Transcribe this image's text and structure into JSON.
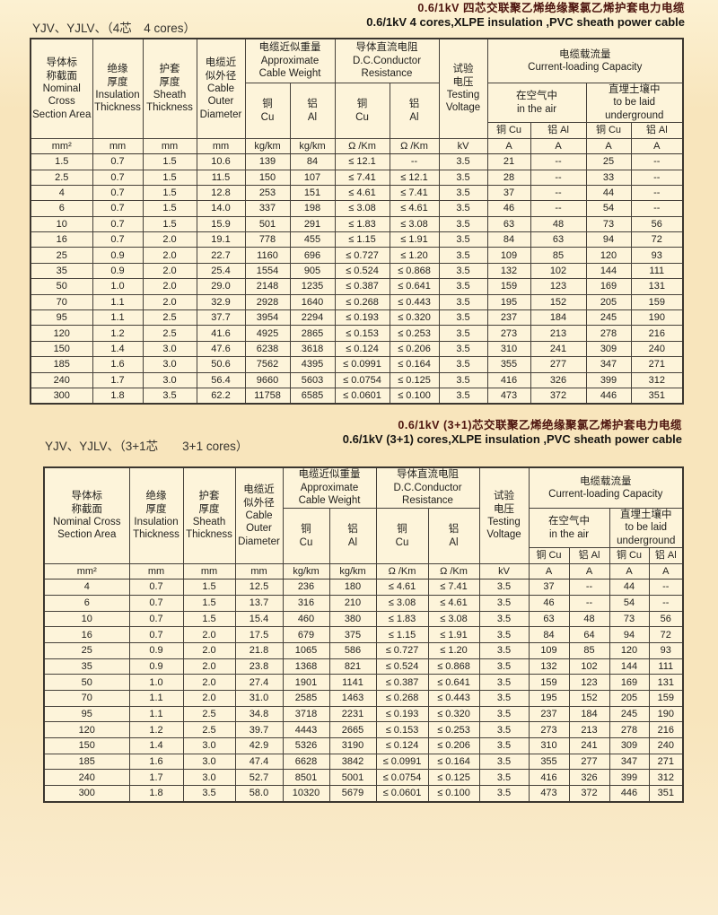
{
  "colors": {
    "page_bg": "#f8e5bc",
    "cell_bg": "#fdf4da",
    "title_zh": "#4d140e",
    "title_en": "#161512"
  },
  "tables": {
    "t1": {
      "title_zh": "0.6/1kV 四芯交联聚乙烯绝缘聚氯乙烯护套电力电缆",
      "title_en": "0.6/1kV 4 cores,XLPE insulation ,PVC sheath power cable",
      "model": "YJV、YJLV、（4芯　4 cores）",
      "header": {
        "nominal": "导体标\n称截面\nNominal\nCross\nSection Area",
        "insulation": "绝缘\n厚度\nInsulation\nThickness",
        "sheath": "护套\n厚度\nSheath\nThickness",
        "diameter": "电缆近\n似外径\nCable\nOuter\nDiameter",
        "weight": "电缆近似重量\nApproximate\nCable Weight",
        "resistance": "导体直流电阻\nD.C.Conductor\nResistance",
        "voltage": "试验\n电压\nTesting\nVoltage",
        "capacity": "电缆载流量\nCurrent-loading Capacity",
        "air": "在空气中\nin the air",
        "underground": "直埋土壤中\nto be laid\nunderground",
        "cu_stacked": "铜\nCu",
        "al_stacked": "铝\nAl",
        "cu_inline": "铜 Cu",
        "al_inline": "铝 Al"
      },
      "units": [
        "mm²",
        "mm",
        "mm",
        "mm",
        "kg/km",
        "kg/km",
        "Ω /Km",
        "Ω /Km",
        "kV",
        "A",
        "A",
        "A",
        "A"
      ],
      "rows": [
        [
          "1.5",
          "0.7",
          "1.5",
          "10.6",
          "139",
          "84",
          "≤ 12.1",
          "--",
          "3.5",
          "21",
          "--",
          "25",
          "--"
        ],
        [
          "2.5",
          "0.7",
          "1.5",
          "11.5",
          "150",
          "107",
          "≤ 7.41",
          "≤ 12.1",
          "3.5",
          "28",
          "--",
          "33",
          "--"
        ],
        [
          "4",
          "0.7",
          "1.5",
          "12.8",
          "253",
          "151",
          "≤ 4.61",
          "≤ 7.41",
          "3.5",
          "37",
          "--",
          "44",
          "--"
        ],
        [
          "6",
          "0.7",
          "1.5",
          "14.0",
          "337",
          "198",
          "≤ 3.08",
          "≤ 4.61",
          "3.5",
          "46",
          "--",
          "54",
          "--"
        ],
        [
          "10",
          "0.7",
          "1.5",
          "15.9",
          "501",
          "291",
          "≤ 1.83",
          "≤ 3.08",
          "3.5",
          "63",
          "48",
          "73",
          "56"
        ],
        [
          "16",
          "0.7",
          "2.0",
          "19.1",
          "778",
          "455",
          "≤ 1.15",
          "≤ 1.91",
          "3.5",
          "84",
          "63",
          "94",
          "72"
        ],
        [
          "25",
          "0.9",
          "2.0",
          "22.7",
          "1160",
          "696",
          "≤ 0.727",
          "≤ 1.20",
          "3.5",
          "109",
          "85",
          "120",
          "93"
        ],
        [
          "35",
          "0.9",
          "2.0",
          "25.4",
          "1554",
          "905",
          "≤ 0.524",
          "≤ 0.868",
          "3.5",
          "132",
          "102",
          "144",
          "111"
        ],
        [
          "50",
          "1.0",
          "2.0",
          "29.0",
          "2148",
          "1235",
          "≤ 0.387",
          "≤ 0.641",
          "3.5",
          "159",
          "123",
          "169",
          "131"
        ],
        [
          "70",
          "1.1",
          "2.0",
          "32.9",
          "2928",
          "1640",
          "≤ 0.268",
          "≤ 0.443",
          "3.5",
          "195",
          "152",
          "205",
          "159"
        ],
        [
          "95",
          "1.1",
          "2.5",
          "37.7",
          "3954",
          "2294",
          "≤ 0.193",
          "≤ 0.320",
          "3.5",
          "237",
          "184",
          "245",
          "190"
        ],
        [
          "120",
          "1.2",
          "2.5",
          "41.6",
          "4925",
          "2865",
          "≤ 0.153",
          "≤ 0.253",
          "3.5",
          "273",
          "213",
          "278",
          "216"
        ],
        [
          "150",
          "1.4",
          "3.0",
          "47.6",
          "6238",
          "3618",
          "≤ 0.124",
          "≤ 0.206",
          "3.5",
          "310",
          "241",
          "309",
          "240"
        ],
        [
          "185",
          "1.6",
          "3.0",
          "50.6",
          "7562",
          "4395",
          "≤ 0.0991",
          "≤ 0.164",
          "3.5",
          "355",
          "277",
          "347",
          "271"
        ],
        [
          "240",
          "1.7",
          "3.0",
          "56.4",
          "9660",
          "5603",
          "≤ 0.0754",
          "≤ 0.125",
          "3.5",
          "416",
          "326",
          "399",
          "312"
        ],
        [
          "300",
          "1.8",
          "3.5",
          "62.2",
          "11758",
          "6585",
          "≤ 0.0601",
          "≤ 0.100",
          "3.5",
          "473",
          "372",
          "446",
          "351"
        ]
      ]
    },
    "t2": {
      "title_zh": "0.6/1kV (3+1)芯交联聚乙烯绝缘聚氯乙烯护套电力电缆",
      "title_en": "0.6/1kV (3+1) cores,XLPE insulation ,PVC sheath power cable",
      "model": "YJV、YJLV、（3+1芯　　3+1 cores）",
      "header": {
        "nominal": "导体标\n称截面\nNominal Cross\nSection Area",
        "insulation": "绝缘\n厚度\nInsulation\nThickness",
        "sheath": "护套\n厚度\nSheath\nThickness",
        "diameter": "电缆近\n似外径\nCable\nOuter\nDiameter",
        "weight": "电缆近似重量\nApproximate\nCable Weight",
        "resistance": "导体直流电阻\nD.C.Conductor\nResistance",
        "voltage": "试验\n电压\nTesting\nVoltage",
        "capacity": "电缆载流量\nCurrent-loading Capacity",
        "air": "在空气中\nin the air",
        "underground": "直埋土壤中\nto be laid\nunderground",
        "cu_stacked": "铜\nCu",
        "al_stacked": "铝\nAl",
        "cu_inline": "铜 Cu",
        "al_inline": "铝 Al"
      },
      "units": [
        "mm²",
        "mm",
        "mm",
        "mm",
        "kg/km",
        "kg/km",
        "Ω /Km",
        "Ω /Km",
        "kV",
        "A",
        "A",
        "A",
        "A"
      ],
      "rows": [
        [
          "4",
          "0.7",
          "1.5",
          "12.5",
          "236",
          "180",
          "≤ 4.61",
          "≤ 7.41",
          "3.5",
          "37",
          "--",
          "44",
          "--"
        ],
        [
          "6",
          "0.7",
          "1.5",
          "13.7",
          "316",
          "210",
          "≤ 3.08",
          "≤ 4.61",
          "3.5",
          "46",
          "--",
          "54",
          "--"
        ],
        [
          "10",
          "0.7",
          "1.5",
          "15.4",
          "460",
          "380",
          "≤ 1.83",
          "≤ 3.08",
          "3.5",
          "63",
          "48",
          "73",
          "56"
        ],
        [
          "16",
          "0.7",
          "2.0",
          "17.5",
          "679",
          "375",
          "≤ 1.15",
          "≤ 1.91",
          "3.5",
          "84",
          "64",
          "94",
          "72"
        ],
        [
          "25",
          "0.9",
          "2.0",
          "21.8",
          "1065",
          "586",
          "≤ 0.727",
          "≤ 1.20",
          "3.5",
          "109",
          "85",
          "120",
          "93"
        ],
        [
          "35",
          "0.9",
          "2.0",
          "23.8",
          "1368",
          "821",
          "≤ 0.524",
          "≤ 0.868",
          "3.5",
          "132",
          "102",
          "144",
          "111"
        ],
        [
          "50",
          "1.0",
          "2.0",
          "27.4",
          "1901",
          "1141",
          "≤ 0.387",
          "≤ 0.641",
          "3.5",
          "159",
          "123",
          "169",
          "131"
        ],
        [
          "70",
          "1.1",
          "2.0",
          "31.0",
          "2585",
          "1463",
          "≤ 0.268",
          "≤ 0.443",
          "3.5",
          "195",
          "152",
          "205",
          "159"
        ],
        [
          "95",
          "1.1",
          "2.5",
          "34.8",
          "3718",
          "2231",
          "≤ 0.193",
          "≤ 0.320",
          "3.5",
          "237",
          "184",
          "245",
          "190"
        ],
        [
          "120",
          "1.2",
          "2.5",
          "39.7",
          "4443",
          "2665",
          "≤ 0.153",
          "≤ 0.253",
          "3.5",
          "273",
          "213",
          "278",
          "216"
        ],
        [
          "150",
          "1.4",
          "3.0",
          "42.9",
          "5326",
          "3190",
          "≤ 0.124",
          "≤ 0.206",
          "3.5",
          "310",
          "241",
          "309",
          "240"
        ],
        [
          "185",
          "1.6",
          "3.0",
          "47.4",
          "6628",
          "3842",
          "≤ 0.0991",
          "≤ 0.164",
          "3.5",
          "355",
          "277",
          "347",
          "271"
        ],
        [
          "240",
          "1.7",
          "3.0",
          "52.7",
          "8501",
          "5001",
          "≤ 0.0754",
          "≤ 0.125",
          "3.5",
          "416",
          "326",
          "399",
          "312"
        ],
        [
          "300",
          "1.8",
          "3.5",
          "58.0",
          "10320",
          "5679",
          "≤ 0.0601",
          "≤ 0.100",
          "3.5",
          "473",
          "372",
          "446",
          "351"
        ]
      ]
    }
  }
}
